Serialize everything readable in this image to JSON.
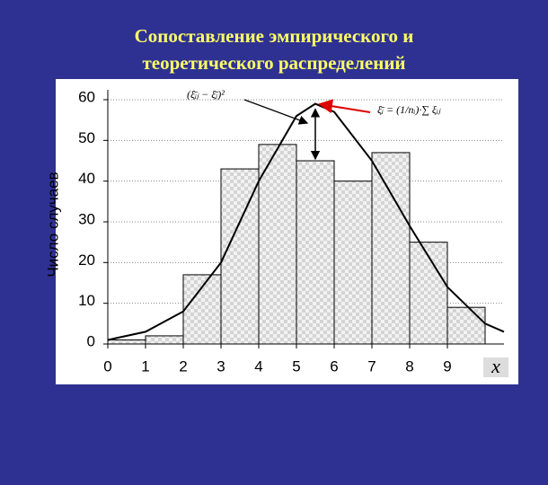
{
  "title_lines": [
    "Сопоставление эмпирического и",
    "теоретического распределений"
  ],
  "chart_data": {
    "type": "histogram",
    "y_label": "Число случаев",
    "x_label": "x",
    "annotations": [
      "(ξ̄ᵢⱼ − ξ̄ᵢ)²",
      "ξ̄ᵢ = (1/nᵢ)·∑ ξᵢⱼ"
    ],
    "bins": [
      0,
      1,
      2,
      3,
      4,
      5,
      6,
      7,
      8,
      9,
      10
    ],
    "values": [
      1,
      2,
      17,
      43,
      49,
      45,
      40,
      47,
      25,
      9
    ],
    "color": "#d4d4d4",
    "curve": {
      "x": [
        0,
        1,
        2,
        3,
        4,
        5,
        5.5,
        6,
        7,
        8,
        9,
        10,
        10.5
      ],
      "values": [
        1,
        3,
        8,
        20,
        40,
        56,
        59,
        57,
        45,
        29,
        14,
        5,
        3
      ],
      "color": "#000000"
    },
    "xlim": [
      0,
      10.5
    ],
    "ylim": [
      0,
      60
    ],
    "xticks": [
      0,
      1,
      2,
      3,
      4,
      5,
      6,
      7,
      8,
      9
    ],
    "yticks": [
      0,
      10,
      20,
      30,
      40,
      50,
      60
    ],
    "grid": true
  }
}
